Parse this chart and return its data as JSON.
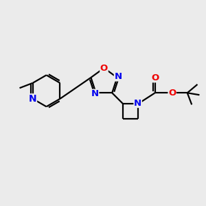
{
  "background_color": "#ebebeb",
  "bond_color": "#000000",
  "bond_width": 1.6,
  "atom_colors": {
    "N": "#0000ee",
    "O": "#ee0000",
    "C": "#000000"
  },
  "font_size": 9,
  "fig_size": [
    3.0,
    3.0
  ],
  "dpi": 100
}
